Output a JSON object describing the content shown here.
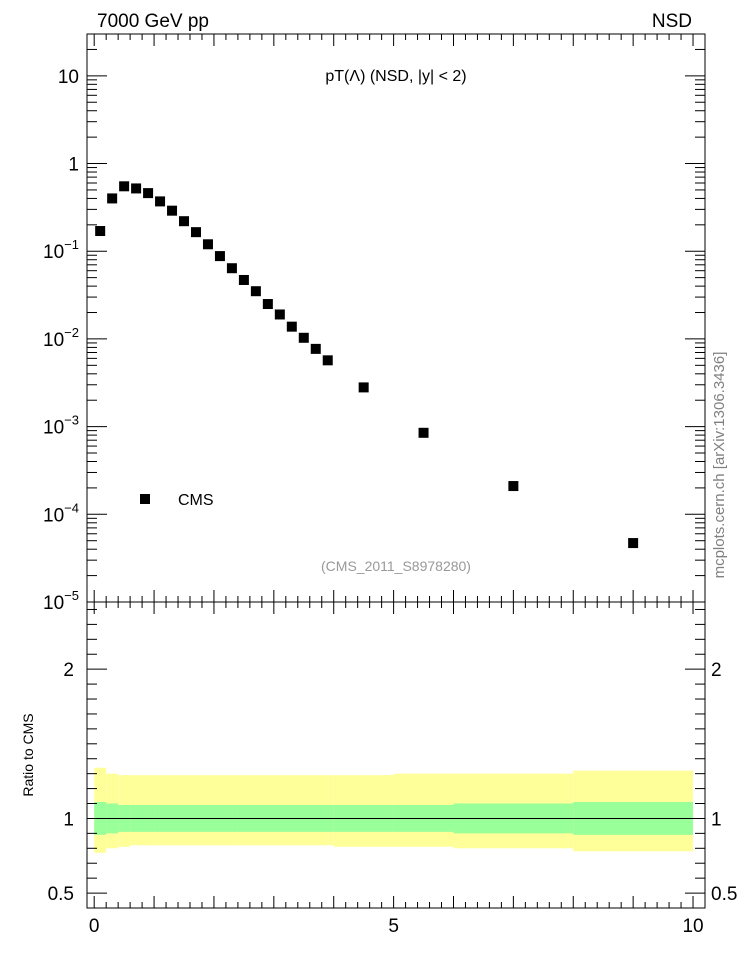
{
  "header": {
    "left": "7000 GeV pp",
    "right": "NSD"
  },
  "side_label": "mcplots.cern.ch [arXiv:1306.3436]",
  "chart_data": [
    {
      "type": "scatter",
      "title": "pT(Λ) (NSD, |y| < 2)",
      "watermark": "(CMS_2011_S8978280)",
      "yscale": "log",
      "ylim": [
        1e-05,
        30
      ],
      "xlim": [
        -0.12,
        10.2
      ],
      "y_tick_labels": [
        {
          "value": 10,
          "label": "10"
        },
        {
          "value": 1,
          "label": "1"
        },
        {
          "value": 0.1,
          "base": "10",
          "exp": "−1"
        },
        {
          "value": 0.01,
          "base": "10",
          "exp": "−2"
        },
        {
          "value": 0.001,
          "base": "10",
          "exp": "−3"
        },
        {
          "value": 0.0001,
          "base": "10",
          "exp": "−4"
        },
        {
          "value": 1e-05,
          "base": "10",
          "exp": "−5"
        }
      ],
      "legend": {
        "entries": [
          "CMS"
        ],
        "placement": "lower-left"
      },
      "series": [
        {
          "name": "CMS",
          "color": "#000000",
          "marker": "square",
          "x": [
            0.1,
            0.3,
            0.5,
            0.7,
            0.9,
            1.1,
            1.3,
            1.5,
            1.7,
            1.9,
            2.1,
            2.3,
            2.5,
            2.7,
            2.9,
            3.1,
            3.3,
            3.5,
            3.7,
            3.9,
            4.5,
            5.5,
            7.0,
            9.0
          ],
          "y": [
            0.17,
            0.4,
            0.55,
            0.52,
            0.46,
            0.37,
            0.29,
            0.22,
            0.165,
            0.12,
            0.088,
            0.064,
            0.047,
            0.035,
            0.025,
            0.019,
            0.0138,
            0.0103,
            0.0077,
            0.0057,
            0.0028,
            0.00085,
            0.00021,
            4.7e-05
          ]
        }
      ]
    },
    {
      "type": "area",
      "ylabel": "Ratio to CMS",
      "ylim": [
        0.4,
        2.45
      ],
      "xlim": [
        -0.12,
        10.2
      ],
      "x_ticks": [
        0,
        5,
        10
      ],
      "y_ticks": [
        0.5,
        1,
        2
      ],
      "x_tick_labels": [
        "0",
        "5",
        "10"
      ],
      "y_tick_labels": [
        "0.5",
        "1",
        "2"
      ],
      "reference_line": 1,
      "band_colors": {
        "inner": "#99ff99",
        "outer": "#ffff99"
      },
      "bands": [
        {
          "x0": 0.0,
          "x1": 0.2,
          "inner": [
            0.89,
            1.11
          ],
          "outer": [
            0.77,
            1.34
          ]
        },
        {
          "x0": 0.2,
          "x1": 0.4,
          "inner": [
            0.9,
            1.1
          ],
          "outer": [
            0.8,
            1.3
          ]
        },
        {
          "x0": 0.4,
          "x1": 0.6,
          "inner": [
            0.91,
            1.09
          ],
          "outer": [
            0.81,
            1.29
          ]
        },
        {
          "x0": 0.6,
          "x1": 1.0,
          "inner": [
            0.91,
            1.09
          ],
          "outer": [
            0.82,
            1.29
          ]
        },
        {
          "x0": 1.0,
          "x1": 2.4,
          "inner": [
            0.91,
            1.09
          ],
          "outer": [
            0.82,
            1.29
          ]
        },
        {
          "x0": 2.4,
          "x1": 4.0,
          "inner": [
            0.91,
            1.09
          ],
          "outer": [
            0.82,
            1.29
          ]
        },
        {
          "x0": 4.0,
          "x1": 5.0,
          "inner": [
            0.91,
            1.09
          ],
          "outer": [
            0.81,
            1.29
          ]
        },
        {
          "x0": 5.0,
          "x1": 6.0,
          "inner": [
            0.91,
            1.09
          ],
          "outer": [
            0.81,
            1.3
          ]
        },
        {
          "x0": 6.0,
          "x1": 8.0,
          "inner": [
            0.9,
            1.1
          ],
          "outer": [
            0.8,
            1.3
          ]
        },
        {
          "x0": 8.0,
          "x1": 10.0,
          "inner": [
            0.89,
            1.11
          ],
          "outer": [
            0.78,
            1.32
          ]
        }
      ]
    }
  ]
}
